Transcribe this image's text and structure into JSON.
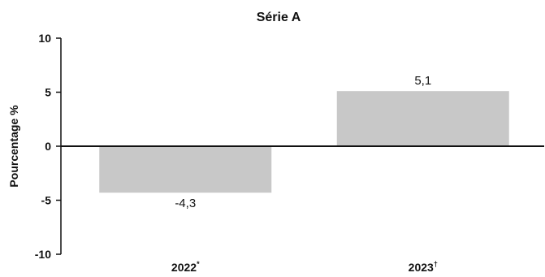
{
  "chart_data": {
    "type": "bar",
    "title": "Série A",
    "xlabel": "",
    "ylabel": "Pourcentage %",
    "ylim": [
      -10,
      10
    ],
    "yticks": [
      "10",
      "5",
      "0",
      "-5",
      "-10"
    ],
    "categories": [
      {
        "label": "2022",
        "mark": "*"
      },
      {
        "label": "2023",
        "mark": "†"
      }
    ],
    "values": [
      -4.3,
      5.1
    ],
    "data_labels": [
      "-4,3",
      "5,1"
    ],
    "bar_color": "#c8c8c8",
    "grid": false,
    "legend": "none"
  }
}
